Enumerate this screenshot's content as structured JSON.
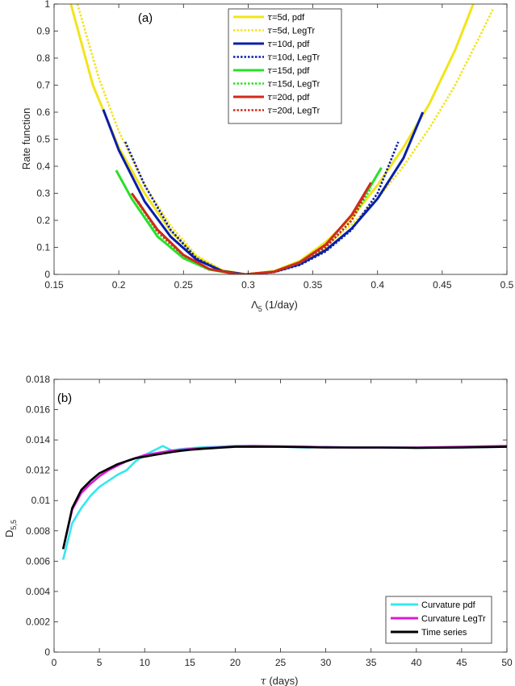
{
  "chart_data": [
    {
      "panel": "(a)",
      "type": "line",
      "xlabel": "Λ",
      "xlabel_sub": "5",
      "xlabel_unit": "(1/day)",
      "ylabel": "Rate function",
      "xlim": [
        0.15,
        0.5
      ],
      "ylim": [
        0,
        1
      ],
      "xticks": [
        0.15,
        0.2,
        0.25,
        0.3,
        0.35,
        0.4,
        0.45,
        0.5
      ],
      "xtick_labels": [
        "0.15",
        "0.2",
        "0.25",
        "0.3",
        "0.35",
        "0.4",
        "0.45",
        "0.5"
      ],
      "yticks": [
        0,
        0.1,
        0.2,
        0.3,
        0.4,
        0.5,
        0.6,
        0.7,
        0.8,
        0.9,
        1
      ],
      "ytick_labels": [
        "0",
        "0.1",
        "0.2",
        "0.3",
        "0.4",
        "0.5",
        "0.6",
        "0.7",
        "0.8",
        "0.9",
        "1"
      ],
      "legend_position": "top-center",
      "series": [
        {
          "name": "τ=5d, pdf",
          "tau": "τ",
          "rest": "=5d, pdf",
          "color": "#f2e41c",
          "style": "solid",
          "x": [
            0.163,
            0.18,
            0.2,
            0.22,
            0.24,
            0.26,
            0.28,
            0.298,
            0.32,
            0.34,
            0.36,
            0.38,
            0.4,
            0.42,
            0.44,
            0.46,
            0.474
          ],
          "y": [
            1.0,
            0.7,
            0.47,
            0.3,
            0.16,
            0.065,
            0.015,
            0.0,
            0.012,
            0.05,
            0.12,
            0.21,
            0.33,
            0.47,
            0.63,
            0.83,
            1.0
          ]
        },
        {
          "name": "τ=5d, LegTr",
          "tau": "τ",
          "rest": "=5d, LegTr",
          "color": "#f2e41c",
          "style": "dotted",
          "x": [
            0.168,
            0.185,
            0.2,
            0.22,
            0.24,
            0.26,
            0.28,
            0.298,
            0.32,
            0.34,
            0.36,
            0.38,
            0.4,
            0.42,
            0.44,
            0.46,
            0.48,
            0.489
          ],
          "y": [
            1.0,
            0.72,
            0.53,
            0.33,
            0.18,
            0.07,
            0.016,
            0.0,
            0.01,
            0.045,
            0.105,
            0.185,
            0.28,
            0.4,
            0.54,
            0.7,
            0.89,
            0.98
          ]
        },
        {
          "name": "τ=10d, pdf",
          "tau": "τ",
          "rest": "=10d, pdf",
          "color": "#0a1fa8",
          "style": "solid",
          "x": [
            0.188,
            0.2,
            0.22,
            0.24,
            0.26,
            0.28,
            0.298,
            0.32,
            0.34,
            0.36,
            0.38,
            0.4,
            0.42,
            0.435
          ],
          "y": [
            0.61,
            0.46,
            0.27,
            0.14,
            0.055,
            0.012,
            0.0,
            0.009,
            0.038,
            0.09,
            0.17,
            0.28,
            0.43,
            0.6
          ]
        },
        {
          "name": "τ=10d, LegTr",
          "tau": "τ",
          "rest": "=10d, LegTr",
          "color": "#0a1fa8",
          "style": "dotted",
          "x": [
            0.205,
            0.22,
            0.24,
            0.26,
            0.28,
            0.298,
            0.32,
            0.34,
            0.36,
            0.38,
            0.4,
            0.416
          ],
          "y": [
            0.49,
            0.33,
            0.165,
            0.06,
            0.012,
            0.0,
            0.008,
            0.035,
            0.085,
            0.165,
            0.3,
            0.49
          ]
        },
        {
          "name": "τ=15d, pdf",
          "tau": "τ",
          "rest": "=15d, pdf",
          "color": "#28e028",
          "style": "solid",
          "x": [
            0.198,
            0.21,
            0.23,
            0.25,
            0.27,
            0.29,
            0.298,
            0.32,
            0.34,
            0.36,
            0.38,
            0.395,
            0.403
          ],
          "y": [
            0.385,
            0.28,
            0.14,
            0.06,
            0.018,
            0.002,
            0.0,
            0.01,
            0.045,
            0.11,
            0.22,
            0.33,
            0.395
          ]
        },
        {
          "name": "τ=15d, LegTr",
          "tau": "τ",
          "rest": "=15d, LegTr",
          "color": "#28e028",
          "style": "dotted",
          "x": [
            0.21,
            0.23,
            0.25,
            0.27,
            0.29,
            0.298,
            0.32,
            0.34,
            0.36,
            0.38,
            0.395
          ],
          "y": [
            0.3,
            0.155,
            0.065,
            0.018,
            0.002,
            0.0,
            0.009,
            0.042,
            0.1,
            0.2,
            0.32
          ]
        },
        {
          "name": "τ=20d, pdf",
          "tau": "τ",
          "rest": "=20d, pdf",
          "color": "#d12a1a",
          "style": "solid",
          "x": [
            0.21,
            0.23,
            0.25,
            0.27,
            0.29,
            0.298,
            0.32,
            0.34,
            0.36,
            0.38,
            0.395
          ],
          "y": [
            0.3,
            0.165,
            0.072,
            0.02,
            0.002,
            0.0,
            0.01,
            0.045,
            0.11,
            0.22,
            0.34
          ]
        },
        {
          "name": "τ=20d, LegTr",
          "tau": "τ",
          "rest": "=20d, LegTr",
          "color": "#d12a1a",
          "style": "dotted",
          "x": [
            0.215,
            0.23,
            0.25,
            0.27,
            0.29,
            0.298,
            0.32,
            0.34,
            0.36,
            0.38,
            0.39
          ],
          "y": [
            0.27,
            0.16,
            0.07,
            0.02,
            0.002,
            0.0,
            0.009,
            0.042,
            0.1,
            0.2,
            0.29
          ]
        }
      ]
    },
    {
      "panel": "(b)",
      "type": "line",
      "xlabel": "τ",
      "xlabel_unit": "(days)",
      "ylabel": "D",
      "ylabel_sub": "5,5",
      "xlim": [
        0,
        50
      ],
      "ylim": [
        0,
        0.018
      ],
      "xticks": [
        0,
        5,
        10,
        15,
        20,
        25,
        30,
        35,
        40,
        45,
        50
      ],
      "xtick_labels": [
        "0",
        "5",
        "10",
        "15",
        "20",
        "25",
        "30",
        "35",
        "40",
        "45",
        "50"
      ],
      "yticks": [
        0,
        0.002,
        0.004,
        0.006,
        0.008,
        0.01,
        0.012,
        0.014,
        0.016,
        0.018
      ],
      "ytick_labels": [
        "0",
        "0.002",
        "0.004",
        "0.006",
        "0.008",
        "0.01",
        "0.012",
        "0.014",
        "0.016",
        "0.018"
      ],
      "legend_position": "bottom-right",
      "series": [
        {
          "name": "Curvature pdf",
          "color": "#33e8f0",
          "x": [
            1,
            2,
            3,
            4,
            5,
            6,
            7,
            8,
            9,
            10,
            11,
            12,
            13,
            14,
            15,
            16,
            18,
            20,
            22,
            25,
            28,
            30,
            33,
            36,
            40,
            45,
            50
          ],
          "y": [
            0.0061,
            0.0085,
            0.0095,
            0.0103,
            0.0109,
            0.0113,
            0.0117,
            0.012,
            0.0126,
            0.013,
            0.0133,
            0.0136,
            0.0133,
            0.0134,
            0.01345,
            0.0135,
            0.01355,
            0.0136,
            0.0136,
            0.01355,
            0.0135,
            0.01355,
            0.0135,
            0.0135,
            0.01348,
            0.0135,
            0.01355
          ]
        },
        {
          "name": "Curvature LegTr",
          "color": "#d81ad8",
          "x": [
            1,
            2,
            3,
            4,
            5,
            6,
            7,
            8,
            9,
            10,
            11,
            12,
            13,
            14,
            15,
            16,
            18,
            20,
            22,
            25,
            28,
            30,
            33,
            36,
            40,
            45,
            50
          ],
          "y": [
            0.0068,
            0.0094,
            0.0105,
            0.0111,
            0.0116,
            0.012,
            0.0123,
            0.0126,
            0.0128,
            0.013,
            0.0131,
            0.0132,
            0.0133,
            0.01335,
            0.0134,
            0.01345,
            0.0135,
            0.01358,
            0.0136,
            0.01358,
            0.01355,
            0.01352,
            0.0135,
            0.0135,
            0.0135,
            0.01355,
            0.0136
          ]
        },
        {
          "name": "Time series",
          "color": "#000000",
          "x": [
            1,
            2,
            3,
            4,
            5,
            6,
            7,
            8,
            9,
            10,
            11,
            12,
            13,
            14,
            15,
            16,
            18,
            20,
            22,
            25,
            28,
            30,
            33,
            36,
            40,
            45,
            50
          ],
          "y": [
            0.0068,
            0.0095,
            0.0107,
            0.0113,
            0.0118,
            0.0121,
            0.0124,
            0.0126,
            0.0128,
            0.0129,
            0.013,
            0.0131,
            0.0132,
            0.01328,
            0.01335,
            0.0134,
            0.01348,
            0.01355,
            0.01355,
            0.01355,
            0.01352,
            0.0135,
            0.0135,
            0.0135,
            0.01348,
            0.0135,
            0.01355
          ]
        }
      ]
    }
  ]
}
